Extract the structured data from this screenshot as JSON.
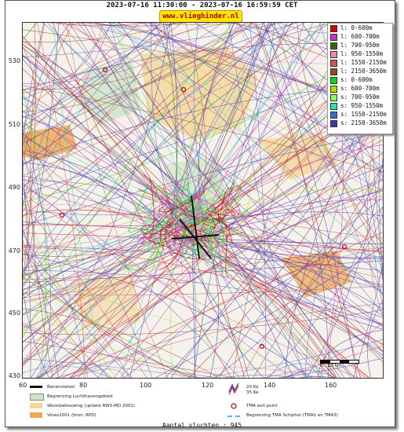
{
  "header": {
    "title": "2023-07-16 11:30:00 - 2023-07-16 16:59:59 CET",
    "site_badge": "www.vlieghinder.nl"
  },
  "axes": {
    "y_ticks": [
      "530",
      "510",
      "490",
      "470",
      "450",
      "430"
    ],
    "x_ticks": [
      "60",
      "80",
      "100",
      "120",
      "140",
      "160"
    ]
  },
  "legend": {
    "items": [
      {
        "label": "l: 0-600m",
        "color": "#d40000"
      },
      {
        "label": "l: 600-700m",
        "color": "#cc33cc"
      },
      {
        "label": "l: 700-950m",
        "color": "#336600"
      },
      {
        "label": "l: 950-1550m",
        "color": "#ee88aa"
      },
      {
        "label": "l: 1550-2150m",
        "color": "#cc5555"
      },
      {
        "label": "l: 2150-3650m",
        "color": "#994422"
      },
      {
        "label": "s: 0-600m",
        "color": "#00dd00"
      },
      {
        "label": "s: 600-700m",
        "color": "#aadd00"
      },
      {
        "label": "s: 700-950m",
        "color": "#88ff55"
      },
      {
        "label": "s: 950-1550m",
        "color": "#33ddaa"
      },
      {
        "label": "s: 1550-2150m",
        "color": "#4466cc"
      },
      {
        "label": "s: 2150-3650m",
        "color": "#4433aa"
      }
    ]
  },
  "map_legend": {
    "banenstelsel": "Banenstelsel",
    "luchthaven": "Begrenzing Luchthavengebied",
    "woonbebouwing": "Woonbebouwing (update RWS-MD 2001)",
    "vinex": "Vinex2001 (bron: RPD)",
    "ke20": "20 Ke",
    "ke35": "35 Ke",
    "tma_exit": "TMA exit point",
    "tma_boundary": "Begrenzing TMA Schiphol  (TMA1 en TMA3)",
    "scale": "0    2.5 km"
  },
  "footer": {
    "count": "Aantal vluchten : 945"
  }
}
